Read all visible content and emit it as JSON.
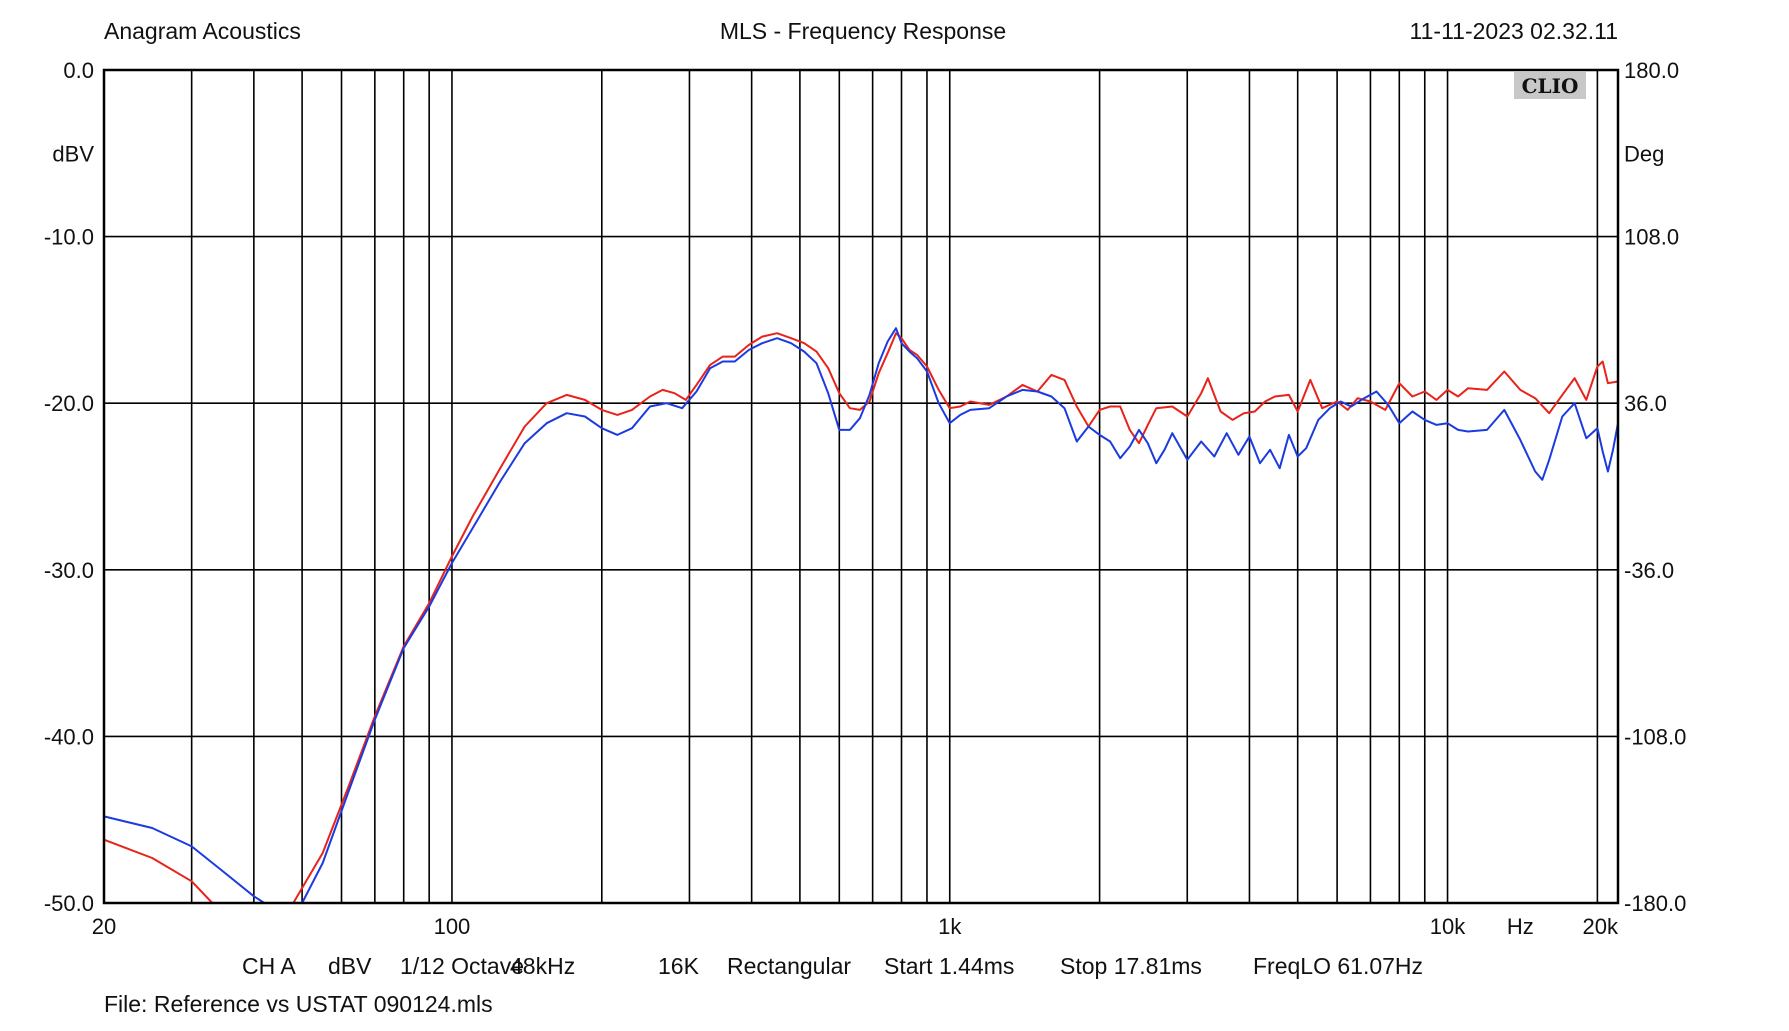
{
  "header": {
    "left": "Anagram Acoustics",
    "center": "MLS - Frequency Response",
    "right": "11-11-2023 02.32.11"
  },
  "badge": "CLIO",
  "footer": {
    "settings": [
      "CH A",
      "dBV",
      "1/12 Octave",
      "48kHz",
      "16K",
      "Rectangular",
      "Start 1.44ms",
      "Stop 17.81ms",
      "FreqLO 61.07Hz"
    ],
    "file": "File: Reference vs USTAT 090124.mls"
  },
  "chart_data": {
    "type": "line",
    "title": "MLS - Frequency Response",
    "xscale": "log",
    "xlim": [
      20,
      22000
    ],
    "ylim": [
      -50,
      0
    ],
    "y2lim": [
      -180,
      180
    ],
    "ylabel": "dBV",
    "y2label": "Deg",
    "xunit": "Hz",
    "grid": true,
    "x_tick_labels": [
      {
        "f": 20,
        "label": "20"
      },
      {
        "f": 100,
        "label": "100"
      },
      {
        "f": 1000,
        "label": "1k"
      },
      {
        "f": 10000,
        "label": "10k"
      },
      {
        "f": 20000,
        "label": "20k"
      }
    ],
    "x_unit_label_freq": 14000,
    "y_ticks": [
      {
        "v": 0,
        "label": "0.0"
      },
      {
        "v": -10,
        "label": "-10.0"
      },
      {
        "v": -20,
        "label": "-20.0"
      },
      {
        "v": -30,
        "label": "-30.0"
      },
      {
        "v": -40,
        "label": "-40.0"
      },
      {
        "v": -50,
        "label": "-50.0"
      }
    ],
    "y2_ticks": [
      {
        "v": 180,
        "label": "180.0"
      },
      {
        "v": 108,
        "label": "108.0"
      },
      {
        "v": 36,
        "label": "36.0"
      },
      {
        "v": -36,
        "label": "-36.0"
      },
      {
        "v": -108,
        "label": "-108.0"
      },
      {
        "v": -180,
        "label": "-180.0"
      }
    ],
    "series": [
      {
        "color": "#e8231a",
        "points": [
          [
            20,
            -46.2
          ],
          [
            25,
            -47.3
          ],
          [
            30,
            -48.7
          ],
          [
            33,
            -50
          ],
          [
            40,
            -50
          ],
          [
            48,
            -50
          ],
          [
            55,
            -47
          ],
          [
            62,
            -43
          ],
          [
            70,
            -38.8
          ],
          [
            80,
            -34.6
          ],
          [
            90,
            -32
          ],
          [
            100,
            -29.2
          ],
          [
            110,
            -26.8
          ],
          [
            125,
            -23.9
          ],
          [
            140,
            -21.4
          ],
          [
            155,
            -20
          ],
          [
            170,
            -19.5
          ],
          [
            185,
            -19.8
          ],
          [
            200,
            -20.4
          ],
          [
            215,
            -20.7
          ],
          [
            230,
            -20.4
          ],
          [
            250,
            -19.6
          ],
          [
            265,
            -19.2
          ],
          [
            280,
            -19.4
          ],
          [
            295,
            -19.8
          ],
          [
            310,
            -18.9
          ],
          [
            330,
            -17.7
          ],
          [
            350,
            -17.2
          ],
          [
            370,
            -17.2
          ],
          [
            395,
            -16.5
          ],
          [
            420,
            -16.0
          ],
          [
            450,
            -15.8
          ],
          [
            480,
            -16.1
          ],
          [
            510,
            -16.4
          ],
          [
            540,
            -16.9
          ],
          [
            570,
            -17.9
          ],
          [
            600,
            -19.4
          ],
          [
            630,
            -20.3
          ],
          [
            660,
            -20.4
          ],
          [
            690,
            -19.9
          ],
          [
            720,
            -18.2
          ],
          [
            750,
            -17.0
          ],
          [
            780,
            -15.8
          ],
          [
            800,
            -16.1
          ],
          [
            830,
            -16.8
          ],
          [
            860,
            -17.1
          ],
          [
            900,
            -17.8
          ],
          [
            950,
            -19.2
          ],
          [
            1000,
            -20.3
          ],
          [
            1050,
            -20.2
          ],
          [
            1100,
            -19.9
          ],
          [
            1200,
            -20.1
          ],
          [
            1300,
            -19.6
          ],
          [
            1400,
            -18.9
          ],
          [
            1500,
            -19.3
          ],
          [
            1600,
            -18.3
          ],
          [
            1700,
            -18.6
          ],
          [
            1800,
            -20.2
          ],
          [
            1900,
            -21.4
          ],
          [
            2000,
            -20.4
          ],
          [
            2100,
            -20.2
          ],
          [
            2200,
            -20.2
          ],
          [
            2300,
            -21.6
          ],
          [
            2400,
            -22.4
          ],
          [
            2500,
            -21.3
          ],
          [
            2600,
            -20.3
          ],
          [
            2800,
            -20.2
          ],
          [
            3000,
            -20.8
          ],
          [
            3200,
            -19.4
          ],
          [
            3300,
            -18.5
          ],
          [
            3500,
            -20.5
          ],
          [
            3700,
            -21.0
          ],
          [
            3900,
            -20.6
          ],
          [
            4100,
            -20.5
          ],
          [
            4300,
            -19.9
          ],
          [
            4500,
            -19.6
          ],
          [
            4800,
            -19.5
          ],
          [
            5000,
            -20.5
          ],
          [
            5300,
            -18.6
          ],
          [
            5600,
            -20.3
          ],
          [
            6000,
            -19.9
          ],
          [
            6300,
            -20.4
          ],
          [
            6600,
            -19.7
          ],
          [
            7000,
            -19.9
          ],
          [
            7500,
            -20.4
          ],
          [
            8000,
            -18.8
          ],
          [
            8500,
            -19.6
          ],
          [
            9000,
            -19.3
          ],
          [
            9500,
            -19.8
          ],
          [
            10000,
            -19.2
          ],
          [
            10500,
            -19.6
          ],
          [
            11000,
            -19.1
          ],
          [
            12000,
            -19.2
          ],
          [
            13000,
            -18.1
          ],
          [
            14000,
            -19.2
          ],
          [
            15000,
            -19.7
          ],
          [
            16000,
            -20.6
          ],
          [
            17000,
            -19.5
          ],
          [
            18000,
            -18.5
          ],
          [
            19000,
            -19.8
          ],
          [
            20000,
            -17.8
          ],
          [
            20500,
            -17.5
          ],
          [
            21000,
            -18.8
          ],
          [
            22000,
            -18.7
          ]
        ]
      },
      {
        "color": "#1b3be0",
        "points": [
          [
            20,
            -44.8
          ],
          [
            25,
            -45.5
          ],
          [
            30,
            -46.6
          ],
          [
            35,
            -48.2
          ],
          [
            40,
            -49.6
          ],
          [
            42,
            -50
          ],
          [
            50,
            -50
          ],
          [
            55,
            -47.6
          ],
          [
            62,
            -43.3
          ],
          [
            70,
            -39.0
          ],
          [
            80,
            -34.7
          ],
          [
            90,
            -32.2
          ],
          [
            100,
            -29.6
          ],
          [
            110,
            -27.5
          ],
          [
            125,
            -24.7
          ],
          [
            140,
            -22.4
          ],
          [
            155,
            -21.2
          ],
          [
            170,
            -20.6
          ],
          [
            185,
            -20.8
          ],
          [
            200,
            -21.5
          ],
          [
            215,
            -21.9
          ],
          [
            230,
            -21.5
          ],
          [
            250,
            -20.2
          ],
          [
            270,
            -20.0
          ],
          [
            290,
            -20.3
          ],
          [
            310,
            -19.3
          ],
          [
            330,
            -17.9
          ],
          [
            350,
            -17.5
          ],
          [
            370,
            -17.5
          ],
          [
            395,
            -16.8
          ],
          [
            420,
            -16.4
          ],
          [
            450,
            -16.1
          ],
          [
            480,
            -16.4
          ],
          [
            510,
            -16.9
          ],
          [
            540,
            -17.6
          ],
          [
            570,
            -19.4
          ],
          [
            600,
            -21.6
          ],
          [
            630,
            -21.6
          ],
          [
            660,
            -20.9
          ],
          [
            690,
            -19.5
          ],
          [
            720,
            -17.6
          ],
          [
            750,
            -16.3
          ],
          [
            780,
            -15.5
          ],
          [
            800,
            -16.4
          ],
          [
            830,
            -16.9
          ],
          [
            860,
            -17.3
          ],
          [
            900,
            -18.1
          ],
          [
            950,
            -20.0
          ],
          [
            1000,
            -21.2
          ],
          [
            1050,
            -20.7
          ],
          [
            1100,
            -20.4
          ],
          [
            1200,
            -20.3
          ],
          [
            1300,
            -19.6
          ],
          [
            1400,
            -19.2
          ],
          [
            1500,
            -19.3
          ],
          [
            1600,
            -19.6
          ],
          [
            1700,
            -20.3
          ],
          [
            1800,
            -22.3
          ],
          [
            1900,
            -21.4
          ],
          [
            2000,
            -21.9
          ],
          [
            2100,
            -22.3
          ],
          [
            2200,
            -23.3
          ],
          [
            2300,
            -22.6
          ],
          [
            2400,
            -21.6
          ],
          [
            2500,
            -22.4
          ],
          [
            2600,
            -23.6
          ],
          [
            2700,
            -22.8
          ],
          [
            2800,
            -21.8
          ],
          [
            3000,
            -23.4
          ],
          [
            3200,
            -22.3
          ],
          [
            3400,
            -23.2
          ],
          [
            3600,
            -21.8
          ],
          [
            3800,
            -23.1
          ],
          [
            4000,
            -22.0
          ],
          [
            4200,
            -23.6
          ],
          [
            4400,
            -22.8
          ],
          [
            4600,
            -23.9
          ],
          [
            4800,
            -21.9
          ],
          [
            5000,
            -23.2
          ],
          [
            5200,
            -22.7
          ],
          [
            5500,
            -21.0
          ],
          [
            5800,
            -20.3
          ],
          [
            6100,
            -19.9
          ],
          [
            6400,
            -20.2
          ],
          [
            6800,
            -19.7
          ],
          [
            7200,
            -19.3
          ],
          [
            7600,
            -20.1
          ],
          [
            8000,
            -21.2
          ],
          [
            8500,
            -20.5
          ],
          [
            9000,
            -21.0
          ],
          [
            9500,
            -21.3
          ],
          [
            10000,
            -21.2
          ],
          [
            10500,
            -21.6
          ],
          [
            11000,
            -21.7
          ],
          [
            12000,
            -21.6
          ],
          [
            13000,
            -20.4
          ],
          [
            14000,
            -22.2
          ],
          [
            15000,
            -24.1
          ],
          [
            15500,
            -24.6
          ],
          [
            16000,
            -23.4
          ],
          [
            17000,
            -20.8
          ],
          [
            18000,
            -20.0
          ],
          [
            19000,
            -22.1
          ],
          [
            20000,
            -21.5
          ],
          [
            20500,
            -22.9
          ],
          [
            21000,
            -24.1
          ],
          [
            21500,
            -22.8
          ],
          [
            22000,
            -21.2
          ]
        ]
      }
    ]
  }
}
